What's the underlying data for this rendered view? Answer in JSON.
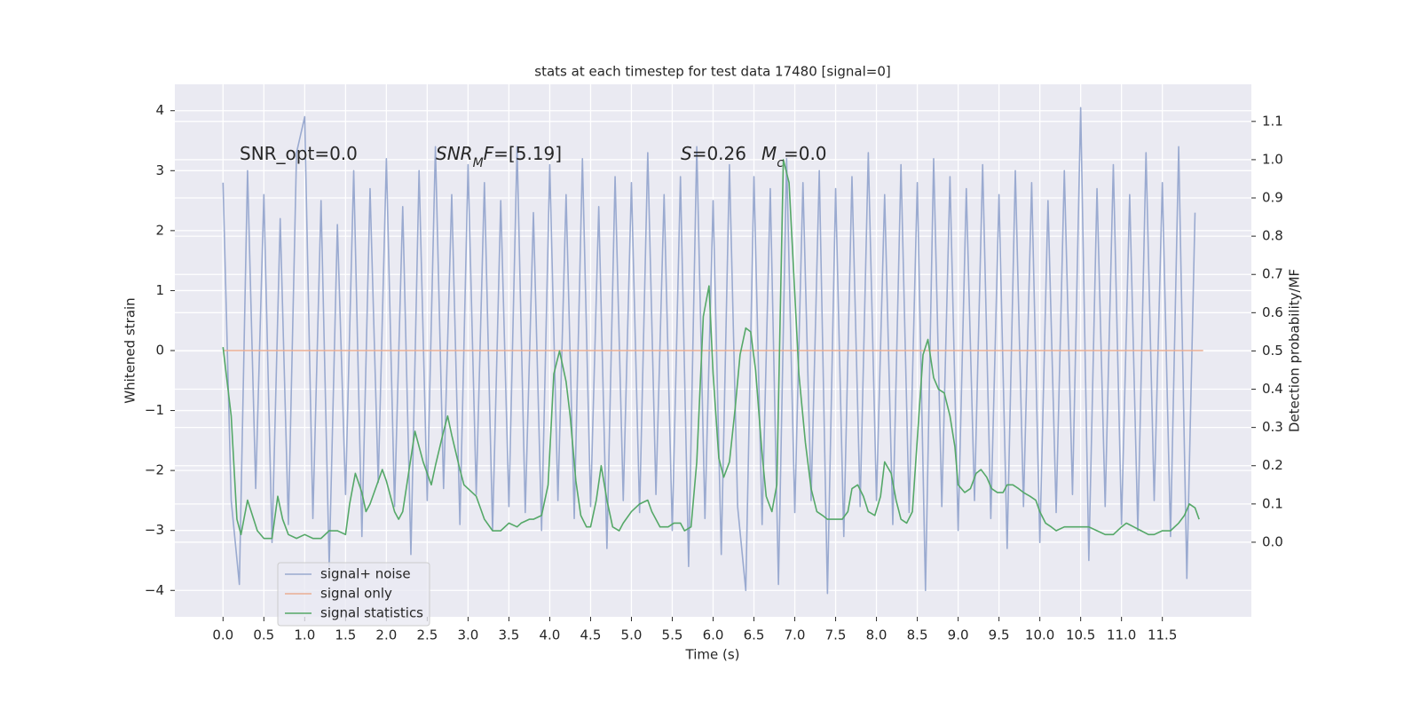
{
  "chart_data": {
    "type": "line",
    "title": "stats at each timestep for test data 17480 [signal=0]",
    "xlabel": "Time (s)",
    "ylabel": "Whitened strain",
    "y2label": "Detection probability/MF",
    "xlim": [
      -0.59,
      12.59
    ],
    "ylim": [
      -4.44,
      4.44
    ],
    "y2lim": [
      -0.195,
      1.197
    ],
    "grid": true,
    "legend": "lower left",
    "xticks": [
      {
        "value": 0,
        "label": "0.0"
      },
      0.5,
      {
        "value": 1,
        "label": "1.0"
      },
      1.5,
      {
        "value": 2,
        "label": "2.0"
      },
      2.5,
      {
        "value": 3,
        "label": "3.0"
      },
      3.5,
      {
        "value": 4,
        "label": "4.0"
      },
      4.5,
      {
        "value": 5,
        "label": "5.0"
      },
      5.5,
      {
        "value": 6,
        "label": "6.0"
      },
      6.5,
      {
        "value": 7,
        "label": "7.0"
      },
      7.5,
      {
        "value": 8,
        "label": "8.0"
      },
      8.5,
      {
        "value": 9,
        "label": "9.0"
      },
      9.5,
      {
        "value": 10,
        "label": "10.0"
      },
      10.5,
      {
        "value": 11,
        "label": "11.0"
      },
      11.5
    ],
    "yticks": [
      {
        "value": -4,
        "label": "−4"
      },
      {
        "value": -3,
        "label": "−3"
      },
      {
        "value": -2,
        "label": "−2"
      },
      {
        "value": -1,
        "label": "−1"
      },
      0,
      1,
      2,
      3,
      4
    ],
    "y2ticks": [
      {
        "value": 0,
        "label": "0.0"
      },
      0.1,
      0.2,
      0.3,
      0.4,
      0.5,
      0.6,
      0.7,
      0.8,
      0.9,
      {
        "value": 1,
        "label": "1.0"
      },
      1.1
    ],
    "annotations": [
      {
        "parts": [
          {
            "text": "SNR_opt=0.0"
          }
        ]
      },
      {
        "parts": [
          {
            "text": "SNR",
            "italic": true
          },
          {
            "text": "M",
            "italic": true,
            "sub": true
          },
          {
            "text": "F",
            "italic": true
          },
          {
            "text": "=[5.19]"
          }
        ]
      },
      {
        "parts": [
          {
            "text": "S",
            "italic": true
          },
          {
            "text": "=0.26"
          }
        ]
      },
      {
        "parts": [
          {
            "text": "M",
            "italic": true
          },
          {
            "text": "c",
            "italic": true,
            "sub": true
          },
          {
            "text": "=0.0"
          }
        ]
      }
    ],
    "series": [
      {
        "name": "signal+ noise",
        "color": "#9aaad0",
        "x": [
          0.0,
          0.1,
          0.2,
          0.3,
          0.4,
          0.5,
          0.6,
          0.7,
          0.8,
          0.9,
          1.0,
          1.1,
          1.2,
          1.3,
          1.4,
          1.5,
          1.6,
          1.7,
          1.8,
          1.9,
          2.0,
          2.1,
          2.2,
          2.3,
          2.4,
          2.5,
          2.6,
          2.7,
          2.8,
          2.9,
          3.0,
          3.1,
          3.2,
          3.3,
          3.4,
          3.5,
          3.6,
          3.7,
          3.8,
          3.9,
          4.0,
          4.1,
          4.2,
          4.3,
          4.4,
          4.5,
          4.6,
          4.7,
          4.8,
          4.9,
          5.0,
          5.1,
          5.2,
          5.3,
          5.4,
          5.5,
          5.6,
          5.7,
          5.8,
          5.9,
          6.0,
          6.1,
          6.2,
          6.3,
          6.4,
          6.5,
          6.6,
          6.7,
          6.8,
          6.9,
          7.0,
          7.1,
          7.2,
          7.3,
          7.4,
          7.5,
          7.6,
          7.7,
          7.8,
          7.9,
          8.0,
          8.1,
          8.2,
          8.3,
          8.4,
          8.5,
          8.6,
          8.7,
          8.8,
          8.9,
          9.0,
          9.1,
          9.2,
          9.3,
          9.4,
          9.5,
          9.6,
          9.7,
          9.8,
          9.9,
          10.0,
          10.1,
          10.2,
          10.3,
          10.4,
          10.5,
          10.6,
          10.7,
          10.8,
          10.9,
          11.0,
          11.1,
          11.2,
          11.3,
          11.4,
          11.5,
          11.6,
          11.7,
          11.8,
          11.9
        ],
        "values": [
          2.8,
          -2.5,
          -3.9,
          3.0,
          -2.3,
          2.6,
          -3.2,
          2.2,
          -2.9,
          3.3,
          3.9,
          -2.8,
          2.5,
          -3.6,
          2.1,
          -2.4,
          3.0,
          -3.1,
          2.7,
          -2.2,
          3.2,
          -2.6,
          2.4,
          -3.4,
          3.0,
          -2.5,
          3.4,
          -2.3,
          2.6,
          -2.9,
          3.1,
          -2.4,
          2.8,
          -3.0,
          2.5,
          -2.6,
          3.4,
          -2.7,
          2.3,
          -3.0,
          3.1,
          -2.5,
          2.6,
          -2.8,
          3.2,
          -2.6,
          2.4,
          -3.3,
          2.9,
          -2.5,
          2.8,
          -2.7,
          3.3,
          -2.4,
          2.6,
          -3.0,
          2.9,
          -3.6,
          3.4,
          -2.8,
          2.5,
          -3.4,
          3.1,
          -2.6,
          -4.0,
          2.9,
          -2.9,
          2.7,
          -3.9,
          3.2,
          -2.7,
          2.8,
          -2.5,
          3.0,
          -4.05,
          2.7,
          -3.1,
          2.9,
          -2.6,
          3.3,
          -2.5,
          2.6,
          -2.9,
          3.1,
          -2.7,
          2.8,
          -4.0,
          3.2,
          -2.6,
          2.9,
          -3.0,
          2.7,
          -2.5,
          3.1,
          -2.8,
          2.6,
          -3.3,
          3.0,
          -2.6,
          2.8,
          -3.2,
          2.5,
          -2.7,
          3.0,
          -2.4,
          4.05,
          -3.5,
          2.7,
          -2.6,
          3.1,
          -2.9,
          2.6,
          -3.0,
          3.3,
          -2.5,
          2.8,
          -3.1,
          3.4,
          -3.8,
          2.3
        ]
      },
      {
        "name": "signal only",
        "color": "#eaae93",
        "x": [
          0.0,
          12.0
        ],
        "values": [
          0,
          0
        ]
      },
      {
        "name": "signal statistics",
        "color": "#55a868",
        "axis": "y2",
        "x": [
          0.0,
          0.1,
          0.17,
          0.22,
          0.3,
          0.42,
          0.5,
          0.6,
          0.67,
          0.73,
          0.8,
          0.9,
          1.0,
          1.1,
          1.2,
          1.3,
          1.4,
          1.5,
          1.55,
          1.62,
          1.7,
          1.75,
          1.8,
          1.9,
          1.95,
          2.0,
          2.1,
          2.15,
          2.2,
          2.3,
          2.35,
          2.45,
          2.55,
          2.6,
          2.7,
          2.75,
          2.8,
          2.9,
          2.95,
          3.0,
          3.1,
          3.2,
          3.3,
          3.4,
          3.5,
          3.6,
          3.65,
          3.75,
          3.8,
          3.9,
          3.98,
          4.05,
          4.12,
          4.2,
          4.25,
          4.32,
          4.38,
          4.45,
          4.5,
          4.57,
          4.63,
          4.7,
          4.77,
          4.85,
          4.9,
          5.0,
          5.1,
          5.2,
          5.25,
          5.35,
          5.45,
          5.52,
          5.6,
          5.65,
          5.73,
          5.8,
          5.88,
          5.95,
          6.0,
          6.07,
          6.13,
          6.2,
          6.27,
          6.33,
          6.4,
          6.46,
          6.52,
          6.6,
          6.65,
          6.72,
          6.78,
          6.86,
          6.93,
          7.0,
          7.05,
          7.13,
          7.2,
          7.27,
          7.34,
          7.4,
          7.5,
          7.58,
          7.65,
          7.7,
          7.77,
          7.84,
          7.9,
          7.98,
          8.05,
          8.1,
          8.18,
          8.24,
          8.3,
          8.37,
          8.44,
          8.5,
          8.57,
          8.63,
          8.7,
          8.76,
          8.83,
          8.9,
          8.96,
          9.0,
          9.08,
          9.15,
          9.22,
          9.28,
          9.35,
          9.41,
          9.48,
          9.55,
          9.6,
          9.67,
          9.74,
          9.8,
          9.88,
          9.95,
          10.0,
          10.07,
          10.14,
          10.2,
          10.3,
          10.4,
          10.55,
          10.6,
          10.7,
          10.8,
          10.9,
          11.0,
          11.06,
          11.15,
          11.24,
          11.33,
          11.4,
          11.5,
          11.6,
          11.7,
          11.77,
          11.83,
          11.9,
          11.95
        ],
        "values": [
          0.51,
          0.33,
          0.06,
          0.02,
          0.11,
          0.03,
          0.01,
          0.01,
          0.12,
          0.06,
          0.02,
          0.01,
          0.02,
          0.01,
          0.01,
          0.03,
          0.03,
          0.02,
          0.1,
          0.18,
          0.13,
          0.08,
          0.1,
          0.16,
          0.19,
          0.16,
          0.08,
          0.06,
          0.08,
          0.22,
          0.29,
          0.21,
          0.15,
          0.2,
          0.29,
          0.33,
          0.28,
          0.19,
          0.15,
          0.14,
          0.12,
          0.06,
          0.03,
          0.03,
          0.05,
          0.04,
          0.05,
          0.06,
          0.06,
          0.07,
          0.15,
          0.44,
          0.5,
          0.42,
          0.33,
          0.16,
          0.07,
          0.04,
          0.04,
          0.11,
          0.2,
          0.11,
          0.04,
          0.03,
          0.05,
          0.08,
          0.1,
          0.11,
          0.08,
          0.04,
          0.04,
          0.05,
          0.05,
          0.03,
          0.04,
          0.21,
          0.59,
          0.67,
          0.44,
          0.22,
          0.17,
          0.21,
          0.35,
          0.49,
          0.56,
          0.55,
          0.45,
          0.23,
          0.12,
          0.08,
          0.15,
          1.0,
          0.94,
          0.65,
          0.44,
          0.26,
          0.14,
          0.08,
          0.07,
          0.06,
          0.06,
          0.06,
          0.08,
          0.14,
          0.15,
          0.12,
          0.08,
          0.07,
          0.12,
          0.21,
          0.18,
          0.11,
          0.06,
          0.05,
          0.08,
          0.27,
          0.49,
          0.53,
          0.43,
          0.4,
          0.39,
          0.33,
          0.25,
          0.15,
          0.13,
          0.14,
          0.18,
          0.19,
          0.17,
          0.14,
          0.13,
          0.13,
          0.15,
          0.15,
          0.14,
          0.13,
          0.12,
          0.11,
          0.08,
          0.05,
          0.04,
          0.03,
          0.04,
          0.04,
          0.04,
          0.04,
          0.03,
          0.02,
          0.02,
          0.04,
          0.05,
          0.04,
          0.03,
          0.02,
          0.02,
          0.03,
          0.03,
          0.05,
          0.07,
          0.1,
          0.09,
          0.06
        ]
      }
    ]
  }
}
